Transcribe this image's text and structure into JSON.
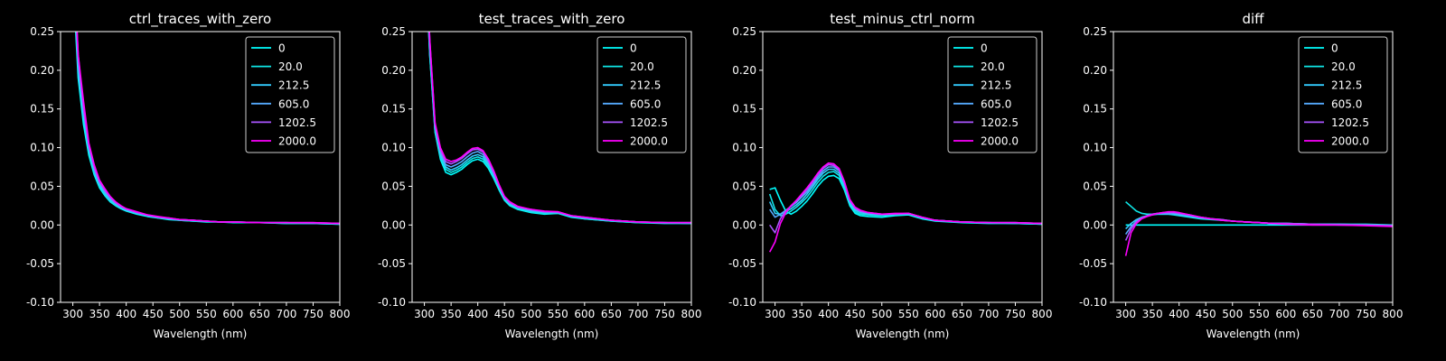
{
  "chart_data": [
    {
      "type": "line",
      "title": "ctrl_traces_with_zero",
      "xlabel": "Wavelength (nm)",
      "ylabel": "",
      "xlim": [
        277,
        800
      ],
      "ylim": [
        -0.1,
        0.25
      ],
      "xticks": [
        300,
        350,
        400,
        450,
        500,
        550,
        600,
        650,
        700,
        750,
        800
      ],
      "yticks": [
        -0.1,
        -0.05,
        0.0,
        0.05,
        0.1,
        0.15,
        0.2,
        0.25
      ],
      "legend_position": "upper right",
      "x": [
        300,
        310,
        320,
        330,
        340,
        350,
        360,
        370,
        380,
        390,
        400,
        420,
        440,
        460,
        480,
        500,
        525,
        550,
        575,
        600,
        650,
        700,
        750,
        800
      ],
      "series": [
        {
          "name": "0",
          "color": "#00ffff",
          "values": [
            0.32,
            0.19,
            0.13,
            0.09,
            0.065,
            0.048,
            0.038,
            0.03,
            0.025,
            0.021,
            0.018,
            0.014,
            0.011,
            0.009,
            0.007,
            0.006,
            0.005,
            0.004,
            0.004,
            0.003,
            0.003,
            0.002,
            0.002,
            0.001
          ]
        },
        {
          "name": "20.0",
          "color": "#0fe6e6",
          "values": [
            0.33,
            0.2,
            0.14,
            0.095,
            0.068,
            0.05,
            0.04,
            0.031,
            0.026,
            0.022,
            0.019,
            0.015,
            0.012,
            0.009,
            0.008,
            0.006,
            0.005,
            0.005,
            0.004,
            0.004,
            0.003,
            0.002,
            0.002,
            0.001
          ]
        },
        {
          "name": "212.5",
          "color": "#33ccff",
          "values": [
            0.34,
            0.2,
            0.14,
            0.098,
            0.07,
            0.052,
            0.041,
            0.032,
            0.027,
            0.022,
            0.019,
            0.015,
            0.012,
            0.01,
            0.008,
            0.007,
            0.006,
            0.005,
            0.004,
            0.004,
            0.003,
            0.003,
            0.002,
            0.002
          ]
        },
        {
          "name": "605.0",
          "color": "#55aaff",
          "values": [
            0.35,
            0.21,
            0.15,
            0.1,
            0.072,
            0.054,
            0.043,
            0.034,
            0.028,
            0.023,
            0.02,
            0.016,
            0.012,
            0.01,
            0.008,
            0.007,
            0.006,
            0.005,
            0.004,
            0.004,
            0.003,
            0.003,
            0.002,
            0.002
          ]
        },
        {
          "name": "1202.5",
          "color": "#aa55ff",
          "values": [
            0.36,
            0.22,
            0.15,
            0.103,
            0.075,
            0.056,
            0.045,
            0.036,
            0.029,
            0.024,
            0.021,
            0.016,
            0.013,
            0.01,
            0.009,
            0.007,
            0.006,
            0.005,
            0.004,
            0.004,
            0.003,
            0.003,
            0.003,
            0.002
          ]
        },
        {
          "name": "2000.0",
          "color": "#ff00ff",
          "values": [
            0.37,
            0.22,
            0.16,
            0.106,
            0.078,
            0.058,
            0.047,
            0.037,
            0.03,
            0.025,
            0.021,
            0.017,
            0.013,
            0.011,
            0.009,
            0.007,
            0.006,
            0.005,
            0.004,
            0.004,
            0.003,
            0.003,
            0.003,
            0.002
          ]
        }
      ]
    },
    {
      "type": "line",
      "title": "test_traces_with_zero",
      "xlabel": "Wavelength (nm)",
      "ylabel": "",
      "xlim": [
        277,
        800
      ],
      "ylim": [
        -0.1,
        0.25
      ],
      "xticks": [
        300,
        350,
        400,
        450,
        500,
        550,
        600,
        650,
        700,
        750,
        800
      ],
      "yticks": [
        -0.1,
        -0.05,
        0.0,
        0.05,
        0.1,
        0.15,
        0.2,
        0.25
      ],
      "legend_position": "upper right",
      "x": [
        300,
        310,
        320,
        330,
        340,
        350,
        360,
        370,
        380,
        390,
        400,
        410,
        420,
        430,
        440,
        450,
        460,
        475,
        500,
        525,
        550,
        575,
        600,
        650,
        700,
        750,
        800
      ],
      "series": [
        {
          "name": "0",
          "color": "#00ffff",
          "values": [
            0.38,
            0.22,
            0.12,
            0.085,
            0.068,
            0.065,
            0.068,
            0.072,
            0.078,
            0.083,
            0.085,
            0.082,
            0.073,
            0.06,
            0.045,
            0.032,
            0.025,
            0.02,
            0.016,
            0.014,
            0.015,
            0.01,
            0.008,
            0.005,
            0.003,
            0.002,
            0.002
          ]
        },
        {
          "name": "20.0",
          "color": "#0fe6e6",
          "values": [
            0.38,
            0.22,
            0.12,
            0.088,
            0.072,
            0.068,
            0.071,
            0.075,
            0.081,
            0.086,
            0.088,
            0.085,
            0.076,
            0.062,
            0.047,
            0.033,
            0.026,
            0.021,
            0.017,
            0.015,
            0.015,
            0.011,
            0.008,
            0.005,
            0.003,
            0.003,
            0.002
          ]
        },
        {
          "name": "212.5",
          "color": "#33ccff",
          "values": [
            0.39,
            0.23,
            0.125,
            0.091,
            0.075,
            0.071,
            0.074,
            0.078,
            0.084,
            0.089,
            0.091,
            0.088,
            0.078,
            0.064,
            0.048,
            0.034,
            0.027,
            0.022,
            0.018,
            0.016,
            0.016,
            0.011,
            0.009,
            0.006,
            0.004,
            0.003,
            0.002
          ]
        },
        {
          "name": "605.0",
          "color": "#55aaff",
          "values": [
            0.39,
            0.23,
            0.128,
            0.094,
            0.078,
            0.075,
            0.078,
            0.082,
            0.088,
            0.093,
            0.095,
            0.091,
            0.081,
            0.066,
            0.05,
            0.035,
            0.028,
            0.023,
            0.019,
            0.017,
            0.016,
            0.012,
            0.009,
            0.006,
            0.004,
            0.003,
            0.003
          ]
        },
        {
          "name": "1202.5",
          "color": "#aa55ff",
          "values": [
            0.4,
            0.24,
            0.13,
            0.097,
            0.082,
            0.079,
            0.082,
            0.086,
            0.092,
            0.097,
            0.098,
            0.094,
            0.083,
            0.068,
            0.051,
            0.036,
            0.029,
            0.023,
            0.02,
            0.017,
            0.017,
            0.012,
            0.01,
            0.006,
            0.004,
            0.003,
            0.003
          ]
        },
        {
          "name": "2000.0",
          "color": "#ff00ff",
          "values": [
            0.4,
            0.24,
            0.132,
            0.1,
            0.085,
            0.082,
            0.084,
            0.088,
            0.094,
            0.099,
            0.1,
            0.096,
            0.085,
            0.07,
            0.052,
            0.037,
            0.03,
            0.024,
            0.02,
            0.018,
            0.017,
            0.012,
            0.01,
            0.006,
            0.004,
            0.003,
            0.003
          ]
        }
      ]
    },
    {
      "type": "line",
      "title": "test_minus_ctrl_norm",
      "xlabel": "Wavelength (nm)",
      "ylabel": "",
      "xlim": [
        277,
        800
      ],
      "ylim": [
        -0.1,
        0.25
      ],
      "xticks": [
        300,
        350,
        400,
        450,
        500,
        550,
        600,
        650,
        700,
        750,
        800
      ],
      "yticks": [
        -0.1,
        -0.05,
        0.0,
        0.05,
        0.1,
        0.15,
        0.2,
        0.25
      ],
      "legend_position": "upper right",
      "x": [
        290,
        300,
        310,
        320,
        330,
        340,
        350,
        360,
        370,
        380,
        390,
        400,
        410,
        420,
        430,
        440,
        450,
        460,
        475,
        500,
        525,
        550,
        575,
        600,
        650,
        700,
        750,
        800
      ],
      "series": [
        {
          "name": "0",
          "color": "#00ffff",
          "values": [
            0.046,
            0.048,
            0.032,
            0.018,
            0.014,
            0.018,
            0.024,
            0.031,
            0.04,
            0.05,
            0.058,
            0.063,
            0.064,
            0.06,
            0.045,
            0.025,
            0.015,
            0.012,
            0.011,
            0.01,
            0.012,
            0.013,
            0.008,
            0.005,
            0.003,
            0.002,
            0.002,
            0.001
          ]
        },
        {
          "name": "20.0",
          "color": "#0fe6e6",
          "values": [
            0.04,
            0.02,
            0.012,
            0.014,
            0.018,
            0.023,
            0.029,
            0.036,
            0.045,
            0.055,
            0.063,
            0.068,
            0.069,
            0.064,
            0.048,
            0.027,
            0.017,
            0.014,
            0.013,
            0.012,
            0.013,
            0.014,
            0.009,
            0.006,
            0.004,
            0.003,
            0.002,
            0.001
          ]
        },
        {
          "name": "212.5",
          "color": "#33ccff",
          "values": [
            0.03,
            0.015,
            0.014,
            0.017,
            0.021,
            0.026,
            0.032,
            0.04,
            0.049,
            0.059,
            0.067,
            0.072,
            0.072,
            0.067,
            0.051,
            0.029,
            0.019,
            0.016,
            0.014,
            0.013,
            0.014,
            0.014,
            0.009,
            0.006,
            0.004,
            0.003,
            0.002,
            0.002
          ]
        },
        {
          "name": "605.0",
          "color": "#55aaff",
          "values": [
            0.02,
            0.01,
            0.014,
            0.019,
            0.024,
            0.029,
            0.036,
            0.043,
            0.052,
            0.062,
            0.07,
            0.075,
            0.075,
            0.07,
            0.053,
            0.031,
            0.021,
            0.017,
            0.015,
            0.013,
            0.014,
            0.015,
            0.01,
            0.006,
            0.004,
            0.003,
            0.003,
            0.002
          ]
        },
        {
          "name": "1202.5",
          "color": "#aa55ff",
          "values": [
            0.0,
            -0.01,
            0.008,
            0.018,
            0.025,
            0.031,
            0.038,
            0.046,
            0.055,
            0.065,
            0.073,
            0.078,
            0.077,
            0.072,
            0.055,
            0.032,
            0.022,
            0.018,
            0.016,
            0.014,
            0.014,
            0.015,
            0.01,
            0.006,
            0.004,
            0.003,
            0.003,
            0.002
          ]
        },
        {
          "name": "2000.0",
          "color": "#ff00ff",
          "values": [
            -0.035,
            -0.022,
            0.002,
            0.016,
            0.025,
            0.032,
            0.04,
            0.048,
            0.057,
            0.067,
            0.075,
            0.08,
            0.079,
            0.073,
            0.056,
            0.033,
            0.023,
            0.019,
            0.016,
            0.014,
            0.015,
            0.015,
            0.01,
            0.006,
            0.004,
            0.003,
            0.003,
            0.002
          ]
        }
      ]
    },
    {
      "type": "line",
      "title": "diff",
      "xlabel": "Wavelength (nm)",
      "ylabel": "",
      "xlim": [
        277,
        800
      ],
      "ylim": [
        -0.1,
        0.25
      ],
      "xticks": [
        300,
        350,
        400,
        450,
        500,
        550,
        600,
        650,
        700,
        750,
        800
      ],
      "yticks": [
        -0.1,
        -0.05,
        0.0,
        0.05,
        0.1,
        0.15,
        0.2,
        0.25
      ],
      "legend_position": "upper right",
      "x": [
        300,
        310,
        320,
        330,
        340,
        350,
        360,
        370,
        380,
        390,
        400,
        420,
        440,
        460,
        480,
        500,
        525,
        550,
        575,
        600,
        650,
        700,
        750,
        800
      ],
      "series": [
        {
          "name": "0",
          "color": "#00ffff",
          "values": [
            0.0,
            0.0,
            0.0,
            0.0,
            0.0,
            0.0,
            0.0,
            0.0,
            0.0,
            0.0,
            0.0,
            0.0,
            0.0,
            0.0,
            0.0,
            0.0,
            0.0,
            0.0,
            0.0,
            0.0,
            0.0,
            0.0,
            0.0,
            0.0
          ]
        },
        {
          "name": "20.0",
          "color": "#0fe6e6",
          "values": [
            0.03,
            0.024,
            0.018,
            0.015,
            0.014,
            0.014,
            0.014,
            0.014,
            0.014,
            0.013,
            0.012,
            0.01,
            0.008,
            0.007,
            0.006,
            0.005,
            0.004,
            0.003,
            0.002,
            0.002,
            0.001,
            0.001,
            0.001,
            0.0
          ]
        },
        {
          "name": "212.5",
          "color": "#33ccff",
          "values": [
            -0.005,
            0.002,
            0.007,
            0.01,
            0.012,
            0.013,
            0.014,
            0.014,
            0.014,
            0.014,
            0.013,
            0.011,
            0.009,
            0.008,
            0.006,
            0.005,
            0.004,
            0.003,
            0.002,
            0.002,
            0.001,
            0.001,
            0.0,
            0.0
          ]
        },
        {
          "name": "605.0",
          "color": "#55aaff",
          "values": [
            -0.012,
            -0.002,
            0.005,
            0.009,
            0.012,
            0.014,
            0.015,
            0.015,
            0.015,
            0.015,
            0.014,
            0.012,
            0.01,
            0.008,
            0.007,
            0.005,
            0.004,
            0.003,
            0.002,
            0.002,
            0.001,
            0.001,
            0.0,
            -0.001
          ]
        },
        {
          "name": "1202.5",
          "color": "#aa55ff",
          "values": [
            -0.02,
            -0.005,
            0.004,
            0.009,
            0.012,
            0.014,
            0.015,
            0.016,
            0.016,
            0.016,
            0.015,
            0.013,
            0.01,
            0.008,
            0.007,
            0.005,
            0.004,
            0.003,
            0.002,
            0.002,
            0.001,
            0.0,
            0.0,
            -0.001
          ]
        },
        {
          "name": "2000.0",
          "color": "#ff00ff",
          "values": [
            -0.04,
            -0.01,
            0.002,
            0.008,
            0.011,
            0.013,
            0.015,
            0.016,
            0.017,
            0.017,
            0.016,
            0.013,
            0.01,
            0.008,
            0.006,
            0.005,
            0.004,
            0.003,
            0.002,
            0.001,
            0.0,
            0.0,
            -0.001,
            -0.002
          ]
        }
      ]
    }
  ]
}
